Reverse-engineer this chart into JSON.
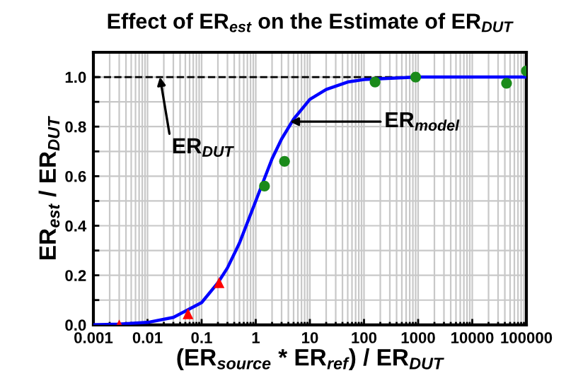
{
  "chart_data": {
    "type": "line",
    "title": "Effect of ER$_{est}$ on the Estimate of ER$_{DUT}$",
    "xlabel": "(ER$_{source}$ * ER$_{ref}$) / ER$_{DUT}$",
    "ylabel": "ER$_{est}$ / ER$_{DUT}$",
    "log": "x",
    "xlim": [
      0.001,
      100000
    ],
    "ylim": [
      0,
      1.1
    ],
    "xticks": [
      0.001,
      {
        "value": 0.002,
        "label": null
      },
      {
        "value": 0.003,
        "label": null
      },
      {
        "value": 0.004,
        "label": null
      },
      {
        "value": 0.005,
        "label": null
      },
      {
        "value": 0.006,
        "label": null
      },
      {
        "value": 0.007,
        "label": null
      },
      {
        "value": 0.008,
        "label": null
      },
      {
        "value": 0.009,
        "label": null
      },
      0.01,
      {
        "value": 0.02,
        "label": null
      },
      {
        "value": 0.03,
        "label": null
      },
      {
        "value": 0.04,
        "label": null
      },
      {
        "value": 0.05,
        "label": null
      },
      {
        "value": 0.06,
        "label": null
      },
      {
        "value": 0.07,
        "label": null
      },
      {
        "value": 0.08,
        "label": null
      },
      {
        "value": 0.09,
        "label": null
      },
      0.1,
      {
        "value": 0.2,
        "label": null
      },
      {
        "value": 0.3,
        "label": null
      },
      {
        "value": 0.4,
        "label": null
      },
      {
        "value": 0.5,
        "label": null
      },
      {
        "value": 0.6,
        "label": null
      },
      {
        "value": 0.7,
        "label": null
      },
      {
        "value": 0.8,
        "label": null
      },
      {
        "value": 0.9,
        "label": null
      },
      1,
      {
        "value": 2,
        "label": null
      },
      {
        "value": 3,
        "label": null
      },
      {
        "value": 4,
        "label": null
      },
      {
        "value": 5,
        "label": null
      },
      {
        "value": 6,
        "label": null
      },
      {
        "value": 7,
        "label": null
      },
      {
        "value": 8,
        "label": null
      },
      {
        "value": 9,
        "label": null
      },
      10,
      {
        "value": 20,
        "label": null
      },
      {
        "value": 30,
        "label": null
      },
      {
        "value": 40,
        "label": null
      },
      {
        "value": 50,
        "label": null
      },
      {
        "value": 60,
        "label": null
      },
      {
        "value": 70,
        "label": null
      },
      {
        "value": 80,
        "label": null
      },
      {
        "value": 90,
        "label": null
      },
      100,
      {
        "value": 200,
        "label": null
      },
      {
        "value": 300,
        "label": null
      },
      {
        "value": 400,
        "label": null
      },
      {
        "value": 500,
        "label": null
      },
      {
        "value": 600,
        "label": null
      },
      {
        "value": 700,
        "label": null
      },
      {
        "value": 800,
        "label": null
      },
      {
        "value": 900,
        "label": null
      },
      1000,
      {
        "value": 2000,
        "label": null
      },
      {
        "value": 3000,
        "label": null
      },
      {
        "value": 4000,
        "label": null
      },
      {
        "value": 5000,
        "label": null
      },
      {
        "value": 6000,
        "label": null
      },
      {
        "value": 7000,
        "label": null
      },
      {
        "value": 8000,
        "label": null
      },
      {
        "value": 9000,
        "label": null
      },
      10000,
      {
        "value": 20000,
        "label": null
      },
      {
        "value": 30000,
        "label": null
      },
      {
        "value": 40000,
        "label": null
      },
      {
        "value": 50000,
        "label": null
      },
      {
        "value": 60000,
        "label": null
      },
      {
        "value": 70000,
        "label": null
      },
      {
        "value": 80000,
        "label": null
      },
      {
        "value": 90000,
        "label": null
      },
      100000
    ],
    "yticks": [
      {
        "value": 0,
        "label": "0.0"
      },
      {
        "value": 0.1,
        "label": null
      },
      0.2,
      {
        "value": 0.3,
        "label": null
      },
      0.4,
      {
        "value": 0.5,
        "label": null
      },
      0.6,
      {
        "value": 0.7,
        "label": null
      },
      0.8,
      {
        "value": 0.9,
        "label": null
      },
      {
        "value": 1,
        "label": "1.0"
      }
    ],
    "grid": true,
    "ref_lines": [
      {
        "axis": "y",
        "value": 1.0,
        "color": "#000000",
        "line_style": "dashed"
      }
    ],
    "series": [
      {
        "color": "#0000ff",
        "marker": "none",
        "line_style": "solid",
        "x": [
          0.001,
          0.003,
          0.01,
          0.03,
          0.1,
          0.2,
          0.3,
          0.5,
          1,
          2,
          3,
          5,
          10,
          20,
          50,
          100,
          1000,
          10000,
          100000
        ],
        "values": [
          0.0,
          0.003,
          0.01,
          0.03,
          0.09,
          0.17,
          0.23,
          0.33,
          0.5,
          0.67,
          0.75,
          0.83,
          0.91,
          0.95,
          0.98,
          0.99,
          1.0,
          1.0,
          1.0
        ]
      },
      {
        "type": "scatter",
        "color": "#ff0000",
        "marker": "triangle",
        "x": [
          0.003,
          0.056,
          0.21
        ],
        "values": [
          0.0,
          0.045,
          0.17
        ]
      },
      {
        "type": "scatter",
        "color": "#1a8a1a",
        "marker": "circle",
        "x": [
          1.45,
          3.4,
          160,
          900,
          43000,
          100000
        ],
        "values": [
          0.56,
          0.66,
          0.98,
          1.0,
          0.975,
          1.025
        ]
      }
    ],
    "annotations": [
      {
        "text": "ER$_{DUT}$",
        "x": 0.017,
        "y": 1.0
      },
      {
        "text": "ER$_{model}$",
        "x": 4.3,
        "y": 0.82
      }
    ]
  }
}
